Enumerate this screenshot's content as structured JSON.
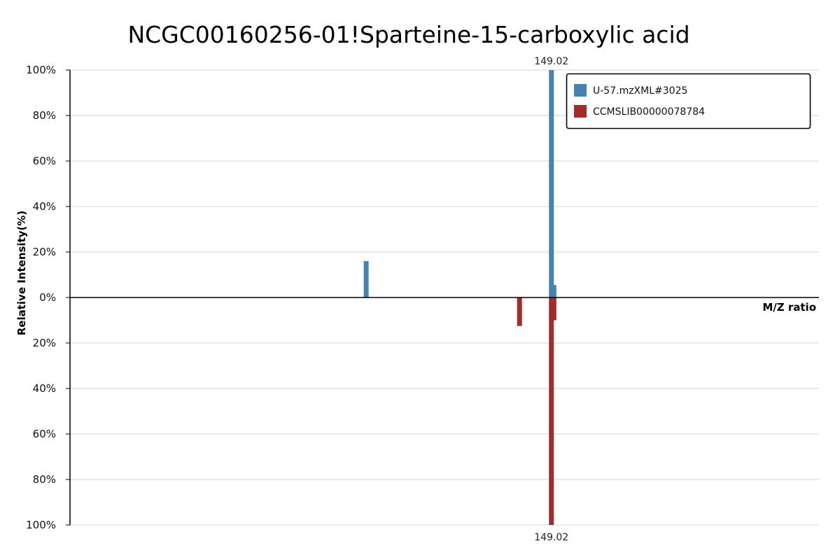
{
  "chart_data": {
    "type": "bar",
    "title": "NCGC00160256-01!Sparteine-15-carboxylic acid",
    "xlabel": "M/Z ratio",
    "ylabel": "Relative Intensity(%)",
    "upper_ticks": [
      "0%",
      "20%",
      "40%",
      "60%",
      "80%",
      "100%"
    ],
    "lower_ticks": [
      "20%",
      "40%",
      "60%",
      "80%",
      "100%"
    ],
    "ylim": [
      -100,
      100
    ],
    "grid": true,
    "legend_position": "top-right",
    "series": [
      {
        "name": "U-57.mzXML#3025",
        "color": "#4682b4",
        "direction": "up",
        "peaks": [
          {
            "mz": 121.0,
            "intensity": 16
          },
          {
            "mz": 149.02,
            "intensity": 100,
            "label": "149.02"
          },
          {
            "mz": 149.4,
            "intensity": 5.5
          }
        ]
      },
      {
        "name": "CCMSLIB00000078784",
        "color": "#a52a2a",
        "direction": "down",
        "peaks": [
          {
            "mz": 144.2,
            "intensity": 12.5
          },
          {
            "mz": 149.02,
            "intensity": 100,
            "label": "149.02"
          },
          {
            "mz": 149.4,
            "intensity": 10
          }
        ]
      }
    ]
  }
}
